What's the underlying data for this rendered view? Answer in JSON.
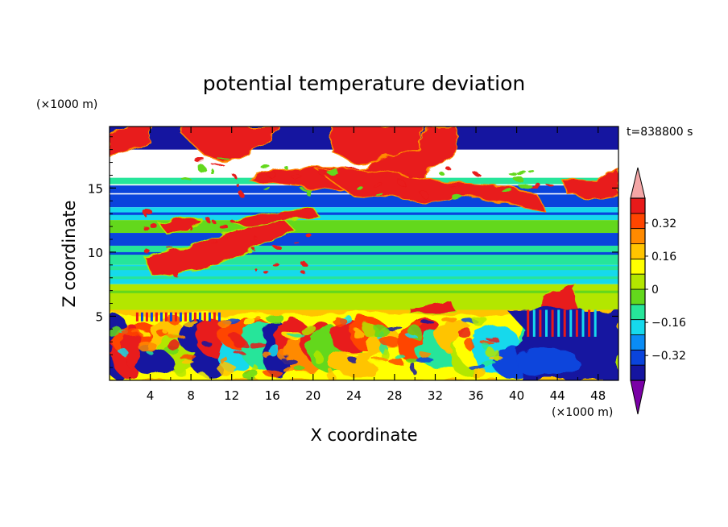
{
  "chart_data": {
    "type": "heatmap",
    "title": "potential temperature deviation",
    "xlabel": "X coordinate",
    "ylabel": "Z coordinate",
    "x_unit": "(×1000 m)",
    "y_unit": "(×1000 m)",
    "time_label": "t=838800 s",
    "xlim": [
      0,
      50
    ],
    "ylim": [
      0,
      19.8
    ],
    "x_ticks": [
      "4",
      "8",
      "12",
      "16",
      "20",
      "24",
      "28",
      "32",
      "36",
      "40",
      "44",
      "48"
    ],
    "y_ticks": [
      "5",
      "10",
      "15"
    ],
    "colorbar": {
      "min": -0.44,
      "max": 0.44,
      "step": 0.08,
      "tick_labels": [
        "0.32",
        "0.16",
        "0",
        "−0.16",
        "−0.32"
      ],
      "extend": "both",
      "colors": [
        "#7A00A6",
        "#1515A0",
        "#0A44DC",
        "#0A8CF5",
        "#16D9EC",
        "#26E59A",
        "#63D81C",
        "#B3E600",
        "#FFFF00",
        "#FFC400",
        "#FF8A00",
        "#FF4500",
        "#E81A1A",
        "#F4A6A6"
      ]
    },
    "levels_by_height": [
      {
        "z": [
          18,
          19.8
        ],
        "value": -0.44,
        "note": "upper layer, mixed with warm patches"
      },
      {
        "z": [
          13.5,
          14.5
        ],
        "value": -0.36
      },
      {
        "z": [
          12.5,
          13.5
        ],
        "value": -0.2
      },
      {
        "z": [
          11.5,
          12.5
        ],
        "value": -0.04
      },
      {
        "z": [
          10.5,
          11.5
        ],
        "value": -0.28
      },
      {
        "z": [
          9,
          10.5
        ],
        "value": -0.12
      },
      {
        "z": [
          7.5,
          9
        ],
        "value": -0.2
      },
      {
        "z": [
          5.5,
          7.5
        ],
        "value": 0.04
      },
      {
        "z": [
          0,
          5.5
        ],
        "value": 0.2,
        "note": "turbulent boundary layer"
      }
    ]
  }
}
